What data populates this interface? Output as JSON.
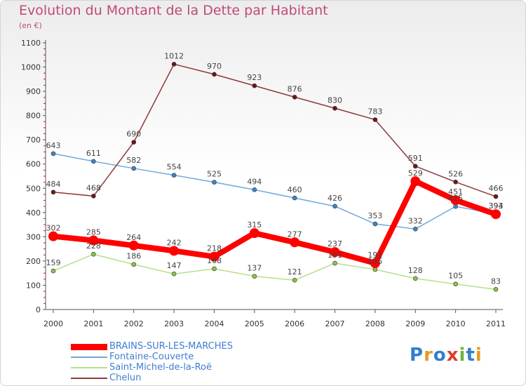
{
  "title": "Evolution du Montant de la Dette par Habitant",
  "subtitle": "(en €)",
  "logo": "Proxiti",
  "chart_data": {
    "type": "line",
    "x": [
      "2000",
      "2001",
      "2002",
      "2003",
      "2004",
      "2005",
      "2006",
      "2007",
      "2008",
      "2009",
      "2010",
      "2011"
    ],
    "ylim": [
      0,
      1100
    ],
    "yticks": [
      0,
      100,
      200,
      300,
      400,
      500,
      600,
      700,
      800,
      900,
      1000,
      1100
    ],
    "grid": false,
    "legend_position": "bottom-left",
    "series": [
      {
        "name": "BRAINS-SUR-LES-MARCHES",
        "color": "#ff0000",
        "width": 8,
        "dot": "#ff0000",
        "values": [
          302,
          285,
          264,
          242,
          218,
          315,
          277,
          237,
          191,
          529,
          451,
          393
        ]
      },
      {
        "name": "Fontaine-Couverte",
        "color": "#6fa8dc",
        "width": 1.5,
        "dot": "#3d85c6",
        "values": [
          643,
          611,
          582,
          554,
          525,
          494,
          460,
          426,
          353,
          332,
          425,
          394
        ]
      },
      {
        "name": "Saint-Michel-de-la-Roë",
        "color": "#b6e08a",
        "width": 1.5,
        "dot": "#8bc34a",
        "values": [
          159,
          228,
          186,
          147,
          168,
          137,
          121,
          191,
          165,
          128,
          105,
          83
        ]
      },
      {
        "name": "Chelun",
        "color": "#8e3a3a",
        "width": 1.5,
        "dot": "#6b1818",
        "values": [
          484,
          468,
          690,
          1012,
          970,
          923,
          876,
          830,
          783,
          591,
          526,
          466
        ]
      }
    ]
  }
}
